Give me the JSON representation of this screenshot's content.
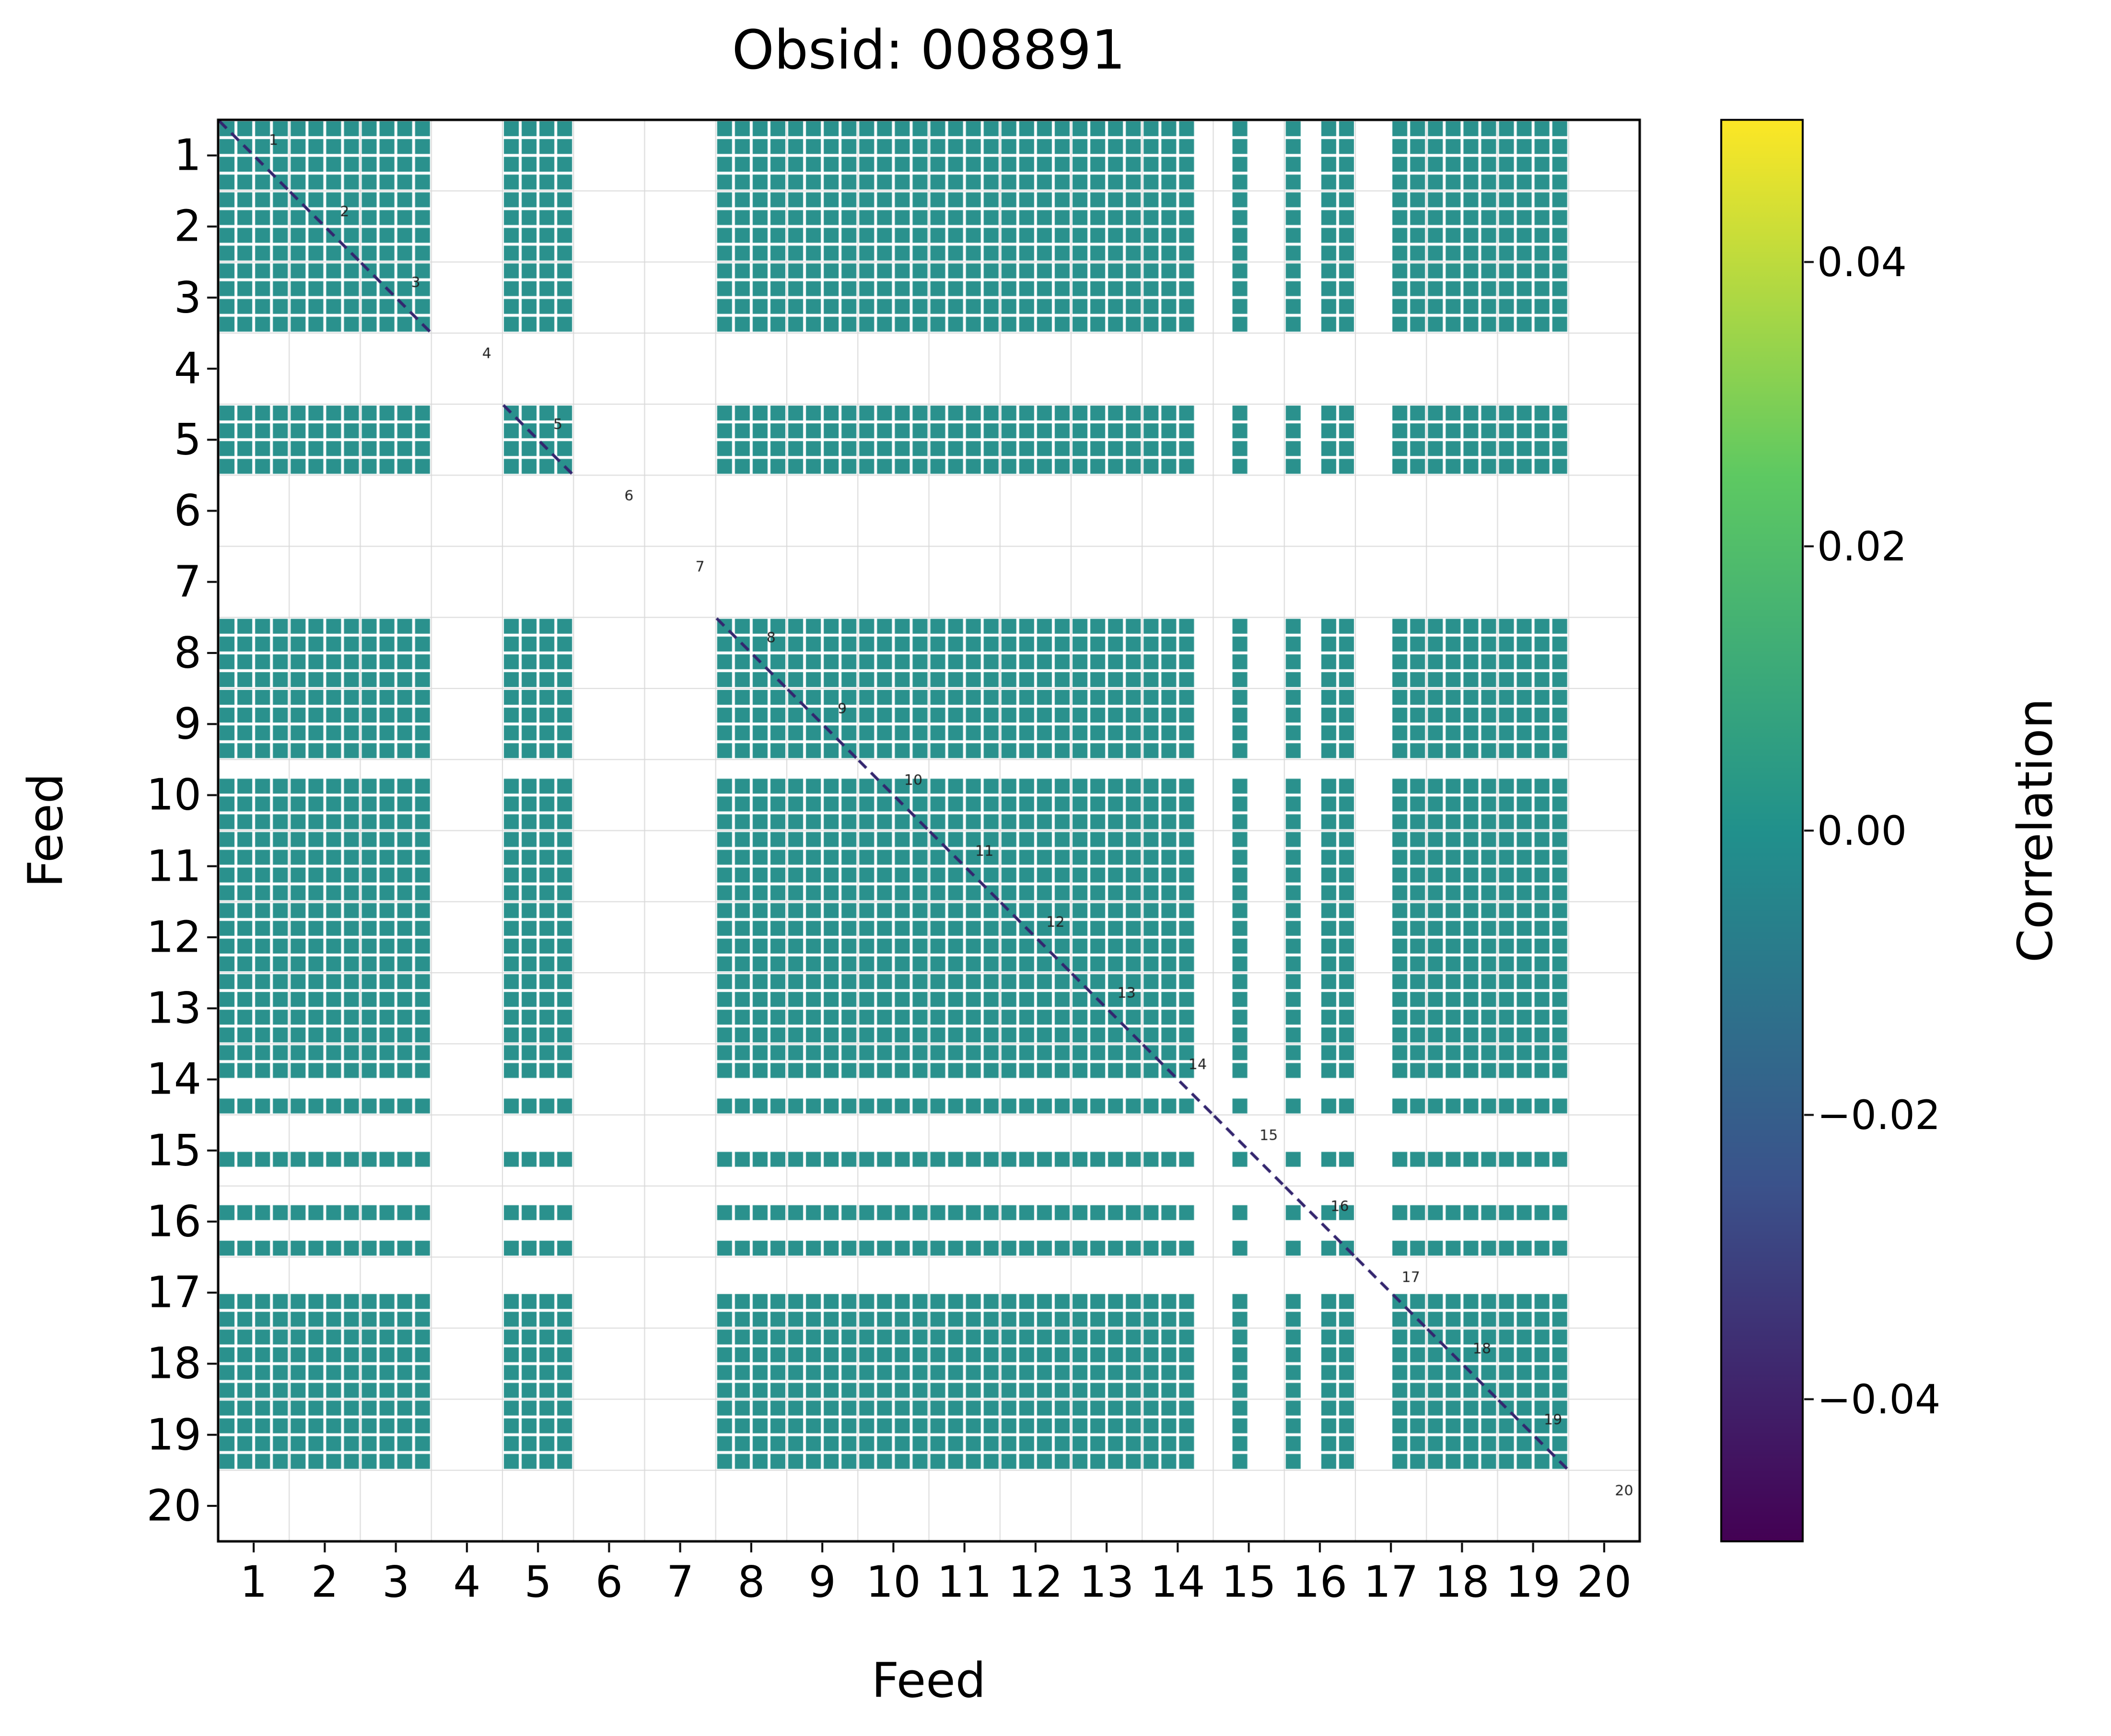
{
  "title": "Obsid: 008891",
  "axes": {
    "xlabel": "Feed",
    "ylabel": "Feed",
    "x_ticks": [
      "1",
      "2",
      "3",
      "4",
      "5",
      "6",
      "7",
      "8",
      "9",
      "10",
      "11",
      "12",
      "13",
      "14",
      "15",
      "16",
      "17",
      "18",
      "19",
      "20"
    ],
    "y_ticks": [
      "1",
      "2",
      "3",
      "4",
      "5",
      "6",
      "7",
      "8",
      "9",
      "10",
      "11",
      "12",
      "13",
      "14",
      "15",
      "16",
      "17",
      "18",
      "19",
      "20"
    ]
  },
  "colorbar": {
    "label": "Correlation",
    "ticks": [
      {
        "label": "0.04",
        "value": 0.04
      },
      {
        "label": "0.02",
        "value": 0.02
      },
      {
        "label": "0.00",
        "value": 0.0
      },
      {
        "label": "−0.02",
        "value": -0.02
      },
      {
        "label": "−0.04",
        "value": -0.04
      }
    ]
  },
  "chart_data": {
    "type": "heatmap",
    "title": "Obsid: 008891",
    "xlabel": "Feed",
    "ylabel": "Feed",
    "n_feeds": 20,
    "subchannels_per_feed": 4,
    "present_feeds": [
      1,
      2,
      3,
      5,
      8,
      9,
      10,
      11,
      12,
      13,
      14,
      15,
      16,
      17,
      18,
      19
    ],
    "missing_feeds": [
      4,
      6,
      7,
      20
    ],
    "flagged_subchannel_columns": [
      55,
      56,
      58,
      59,
      61,
      64,
      65
    ],
    "flagged_subchannel_rows": [
      36,
      54,
      56,
      57,
      59,
      60,
      62,
      64,
      65
    ],
    "base_correlation": 0.0,
    "vmin": -0.05,
    "vmax": 0.05,
    "colormap": "viridis",
    "colormap_stops": [
      [
        0.0,
        "#440154"
      ],
      [
        0.25,
        "#3b528b"
      ],
      [
        0.5,
        "#21918c"
      ],
      [
        0.75,
        "#5ec962"
      ],
      [
        1.0,
        "#fde725"
      ]
    ],
    "cell_color": "#2a918d",
    "diagonal_color": "#33256e",
    "grid_color": "#d9d9d9",
    "diagonal_labels": [
      "1",
      "2",
      "3",
      "4",
      "5",
      "6",
      "7",
      "8",
      "9",
      "10",
      "11",
      "12",
      "13",
      "14",
      "15",
      "16",
      "17",
      "18",
      "19",
      "20"
    ]
  }
}
